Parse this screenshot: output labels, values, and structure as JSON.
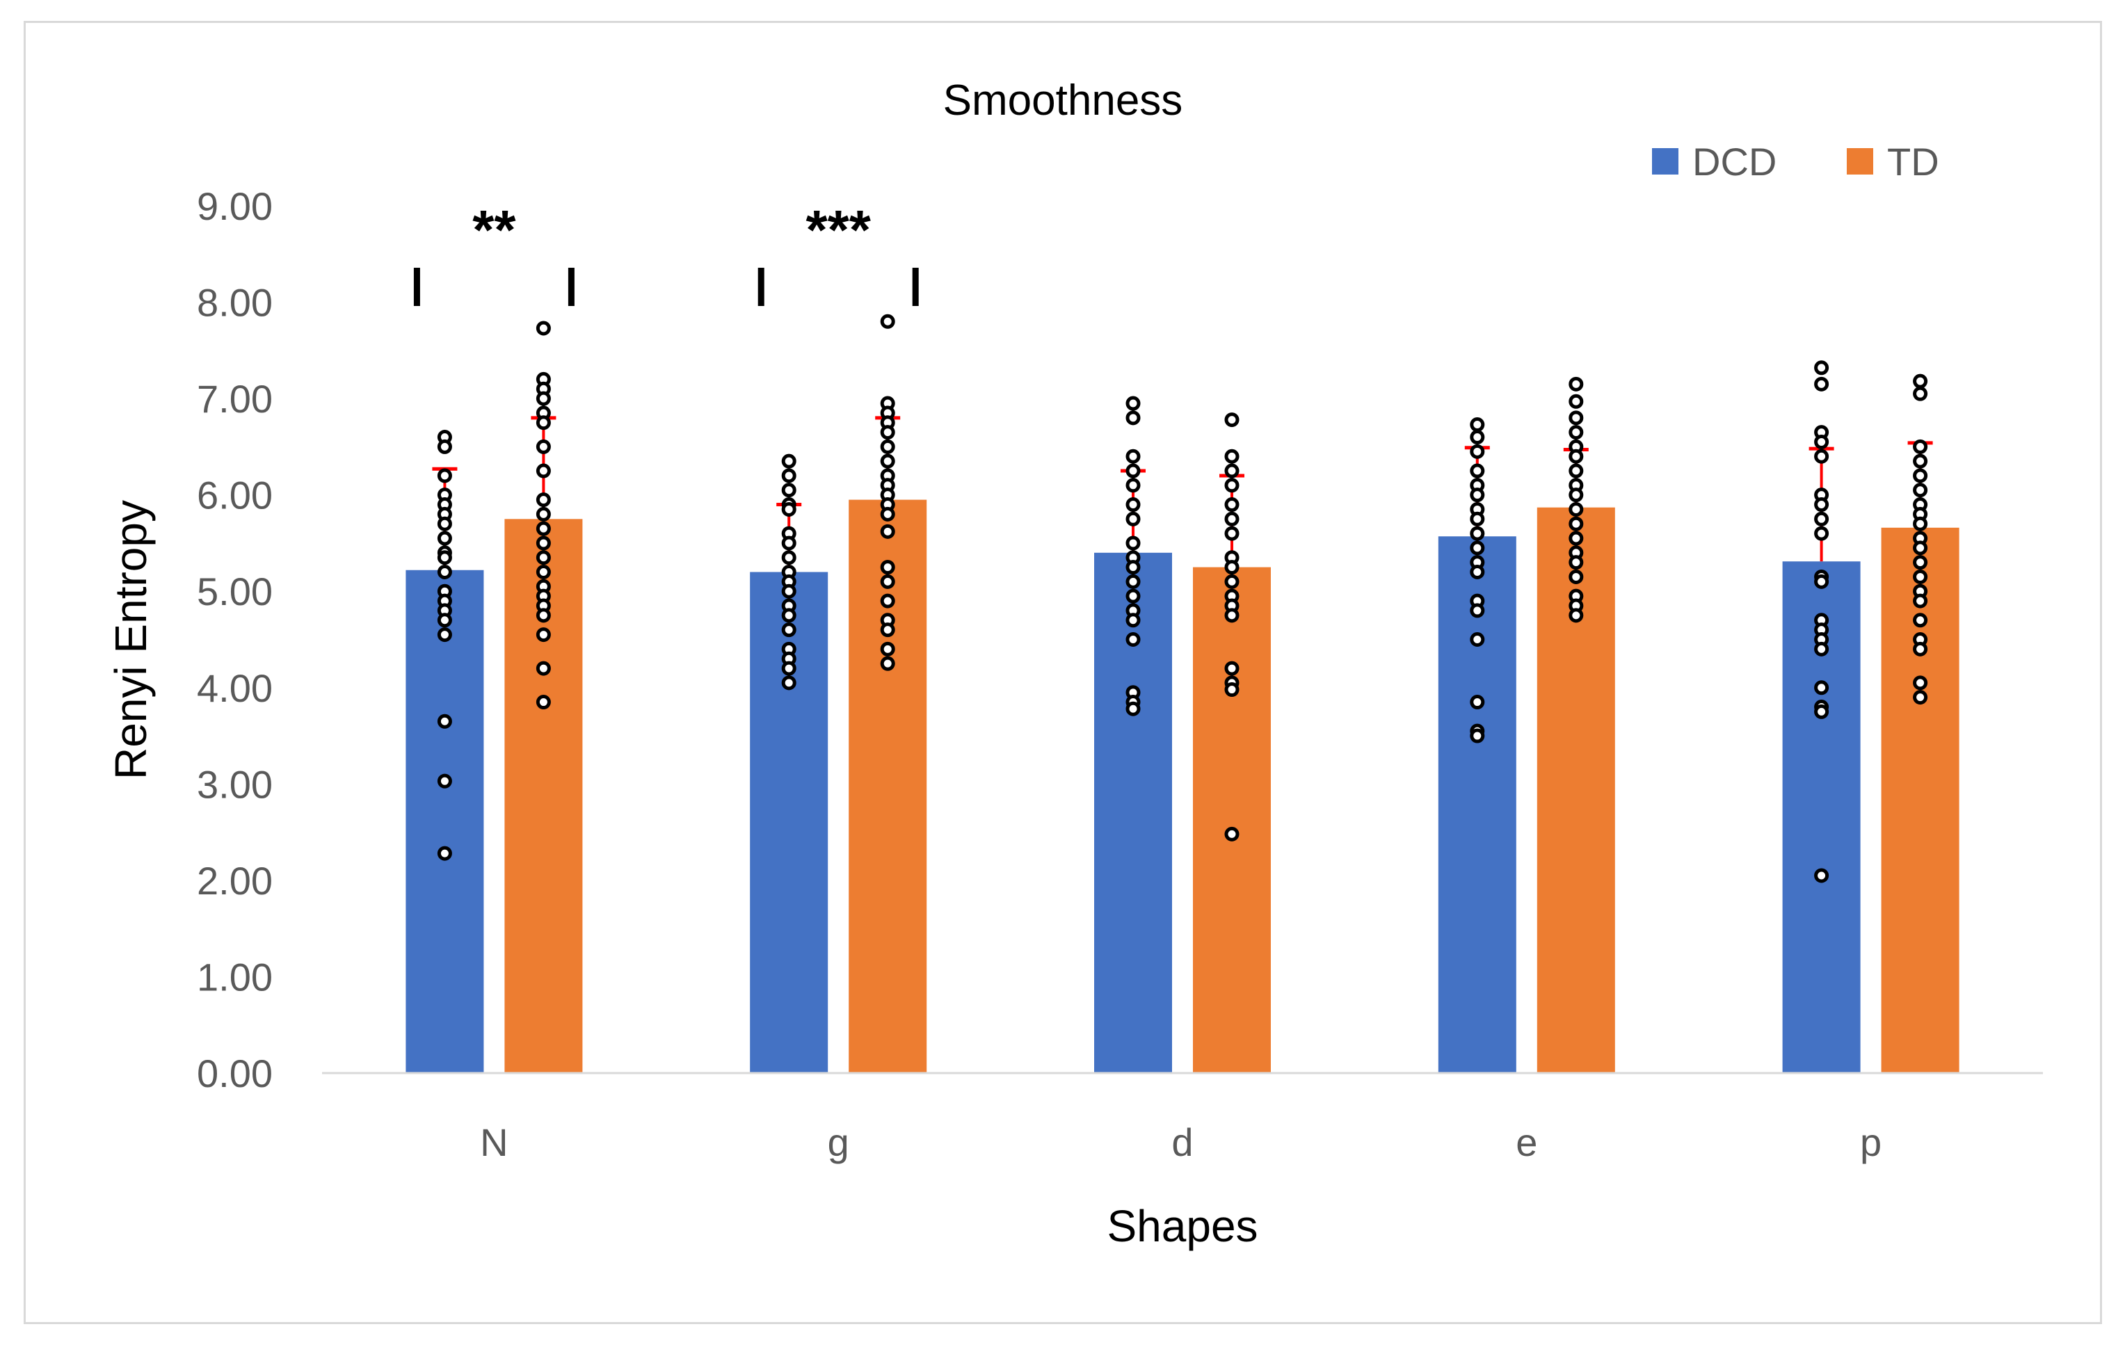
{
  "chart_data": {
    "type": "bar",
    "title": "Smoothness",
    "xlabel": "Shapes",
    "ylabel": "Renyi Entropy",
    "ylim": [
      0,
      9
    ],
    "yticks": [
      "0.00",
      "1.00",
      "2.00",
      "3.00",
      "4.00",
      "5.00",
      "6.00",
      "7.00",
      "8.00",
      "9.00"
    ],
    "categories": [
      "N",
      "g",
      "d",
      "e",
      "p"
    ],
    "legend_position": "top-right",
    "colors": {
      "DCD": "#4472c4",
      "TD": "#ed7d31",
      "error": "#ff0000",
      "points": "#000000"
    },
    "series": [
      {
        "name": "DCD",
        "values": [
          5.22,
          5.2,
          5.4,
          5.57,
          5.31
        ],
        "error": [
          1.05,
          0.7,
          0.85,
          0.92,
          1.17
        ],
        "points": [
          [
            6.6,
            6.5,
            6.2,
            6.0,
            5.9,
            5.8,
            5.7,
            5.55,
            5.4,
            5.35,
            5.2,
            5.0,
            4.9,
            4.8,
            4.7,
            4.55,
            3.65,
            3.03,
            2.28
          ],
          [
            6.35,
            6.2,
            6.05,
            5.9,
            5.85,
            5.6,
            5.5,
            5.35,
            5.2,
            5.1,
            5.0,
            4.85,
            4.75,
            4.6,
            4.4,
            4.3,
            4.2,
            4.05
          ],
          [
            6.95,
            6.8,
            6.4,
            6.25,
            6.1,
            5.9,
            5.75,
            5.5,
            5.35,
            5.25,
            5.1,
            4.95,
            4.8,
            4.7,
            4.5,
            3.95,
            3.85,
            3.78
          ],
          [
            6.73,
            6.6,
            6.45,
            6.25,
            6.1,
            6.0,
            5.85,
            5.75,
            5.6,
            5.45,
            5.3,
            5.2,
            4.9,
            4.8,
            4.5,
            3.85,
            3.55,
            3.5
          ],
          [
            7.32,
            7.15,
            6.65,
            6.55,
            6.4,
            6.0,
            5.9,
            5.75,
            5.6,
            5.15,
            5.1,
            4.7,
            4.6,
            4.5,
            4.4,
            4.0,
            3.8,
            3.75,
            2.05
          ]
        ]
      },
      {
        "name": "TD",
        "values": [
          5.75,
          5.95,
          5.25,
          5.87,
          5.66
        ],
        "error": [
          1.05,
          0.85,
          0.95,
          0.6,
          0.88
        ],
        "points": [
          [
            7.73,
            7.2,
            7.1,
            7.0,
            6.85,
            6.75,
            6.5,
            6.25,
            5.95,
            5.8,
            5.65,
            5.5,
            5.35,
            5.2,
            5.05,
            4.95,
            4.85,
            4.75,
            4.55,
            4.2,
            3.85
          ],
          [
            7.8,
            6.95,
            6.85,
            6.75,
            6.65,
            6.5,
            6.35,
            6.2,
            6.1,
            6.0,
            5.9,
            5.8,
            5.62,
            5.25,
            5.1,
            4.9,
            4.7,
            4.6,
            4.4,
            4.25
          ],
          [
            6.78,
            6.4,
            6.25,
            6.1,
            5.9,
            5.75,
            5.6,
            5.35,
            5.25,
            5.1,
            4.95,
            4.85,
            4.75,
            4.2,
            4.05,
            3.98,
            2.48
          ],
          [
            7.15,
            6.97,
            6.8,
            6.65,
            6.5,
            6.4,
            6.25,
            6.1,
            6.0,
            5.85,
            5.7,
            5.55,
            5.4,
            5.3,
            5.15,
            4.95,
            4.85,
            4.75
          ],
          [
            7.18,
            7.05,
            6.5,
            6.35,
            6.2,
            6.05,
            5.9,
            5.8,
            5.7,
            5.55,
            5.45,
            5.3,
            5.15,
            5.0,
            4.9,
            4.7,
            4.5,
            4.4,
            4.05,
            3.9
          ]
        ]
      }
    ],
    "significance": [
      {
        "category": "N",
        "label": "**"
      },
      {
        "category": "g",
        "label": "***"
      }
    ]
  }
}
